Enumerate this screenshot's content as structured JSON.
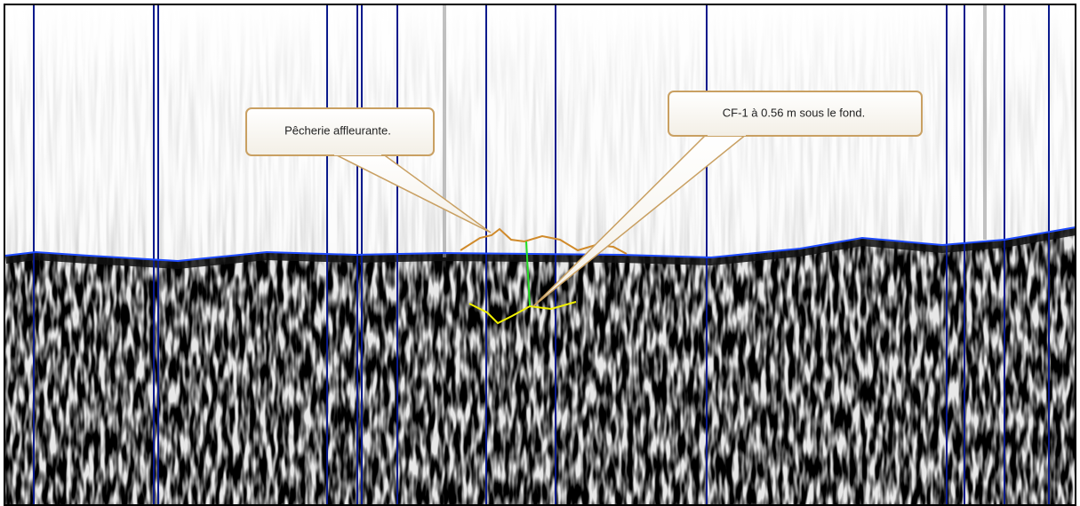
{
  "annotations": [
    {
      "label": "Pêcherie affleurante."
    },
    {
      "label": "CF-1 à 0.56 m sous le fond."
    }
  ]
}
